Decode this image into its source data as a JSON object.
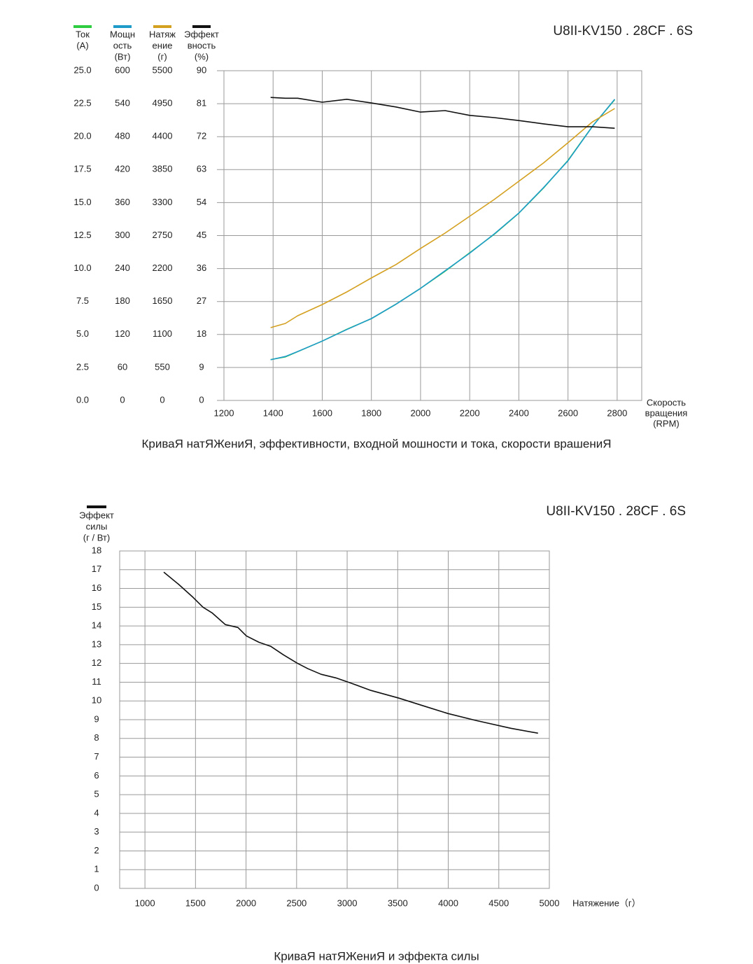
{
  "chart_data": [
    {
      "type": "line",
      "title": "КриваЯ натЯЖениЯ, эффективности, входной мошности и тока, скорости врашениЯ",
      "model": "U8II-KV150 . 28CF . 6S",
      "x_label": [
        "Скорость",
        "вращения",
        "(RPM)"
      ],
      "x": [
        1390,
        1450,
        1500,
        1600,
        1700,
        1800,
        1900,
        2000,
        2100,
        2200,
        2300,
        2400,
        2500,
        2600,
        2700,
        2790
      ],
      "xlim": [
        1200,
        2900
      ],
      "xticks": [
        1200,
        1400,
        1600,
        1800,
        2000,
        2200,
        2400,
        2600,
        2800
      ],
      "grid": true,
      "series": [
        {
          "name": [
            "Ток",
            "(A)"
          ],
          "color": "#2ecc40",
          "values": [
            3.1,
            3.3,
            3.7,
            4.5,
            5.4,
            6.2,
            7.3,
            8.5,
            9.8,
            11.2,
            12.6,
            14.2,
            16.1,
            18.2,
            20.8,
            22.8
          ],
          "ylim": [
            0,
            25
          ],
          "yticks": [
            {
              "value": 0,
              "label": "0.0"
            },
            2.5,
            {
              "value": 5,
              "label": "5.0"
            },
            7.5,
            {
              "value": 10,
              "label": "10.0"
            },
            12.5,
            {
              "value": 15,
              "label": "15.0"
            },
            17.5,
            {
              "value": 20,
              "label": "20.0"
            },
            22.5,
            {
              "value": 25,
              "label": "25.0"
            }
          ]
        },
        {
          "name": [
            "Мощн",
            "ость",
            "(Вт)"
          ],
          "color": "#1e9bc8",
          "values": [
            74,
            80,
            89,
            108,
            129,
            149,
            175,
            204,
            236,
            268,
            303,
            341,
            387,
            436,
            499,
            548
          ],
          "ylim": [
            0,
            600
          ],
          "yticks": [
            0,
            60,
            120,
            180,
            240,
            300,
            360,
            420,
            480,
            540,
            600
          ]
        },
        {
          "name": [
            "Натяж",
            "ение",
            "(г)"
          ],
          "color": "#d4a020",
          "values": [
            1215,
            1285,
            1413,
            1600,
            1810,
            2044,
            2266,
            2535,
            2792,
            3072,
            3352,
            3656,
            3960,
            4298,
            4649,
            4870
          ],
          "ylim": [
            0,
            5500
          ],
          "yticks": [
            0,
            550,
            1100,
            1650,
            2200,
            2750,
            3300,
            3850,
            4400,
            4950,
            5500
          ]
        },
        {
          "name": [
            "Эффект",
            "вность",
            "(%)"
          ],
          "color": "#111111",
          "values": [
            82.7,
            82.5,
            82.5,
            81.4,
            82.2,
            81.2,
            80.1,
            78.7,
            79.1,
            77.8,
            77.2,
            76.4,
            75.5,
            74.7,
            74.7,
            74.3
          ],
          "ylim": [
            0,
            90
          ],
          "yticks": [
            0,
            9,
            18,
            27,
            36,
            45,
            54,
            63,
            72,
            81,
            90
          ]
        }
      ]
    },
    {
      "type": "line",
      "title": "КриваЯ натЯЖениЯ и эффекта силы",
      "model": "U8II-KV150 . 28CF . 6S",
      "x_label": "Натяжение（г）",
      "y_label": [
        "Эффект",
        "силы",
        "(г / Вт)"
      ],
      "x": [
        1186,
        1331,
        1477,
        1574,
        1664,
        1795,
        1920,
        2003,
        2127,
        2245,
        2369,
        2508,
        2612,
        2743,
        2888,
        3027,
        3234,
        3511,
        3753,
        3996,
        4273,
        4619,
        4888
      ],
      "xlim": [
        750,
        5000
      ],
      "xticks": [
        1000,
        1500,
        2000,
        2500,
        3000,
        3500,
        4000,
        4500,
        5000
      ],
      "ylim": [
        0,
        18
      ],
      "yticks": [
        0,
        1,
        2,
        3,
        4,
        5,
        6,
        7,
        8,
        9,
        10,
        11,
        12,
        13,
        14,
        15,
        16,
        17,
        18
      ],
      "grid": true,
      "series": [
        {
          "color": "#111111",
          "values": [
            16.87,
            16.23,
            15.52,
            15.0,
            14.7,
            14.07,
            13.92,
            13.47,
            13.13,
            12.91,
            12.46,
            12.01,
            11.72,
            11.42,
            11.23,
            10.97,
            10.56,
            10.15,
            9.74,
            9.33,
            8.96,
            8.54,
            8.28
          ]
        }
      ]
    }
  ]
}
